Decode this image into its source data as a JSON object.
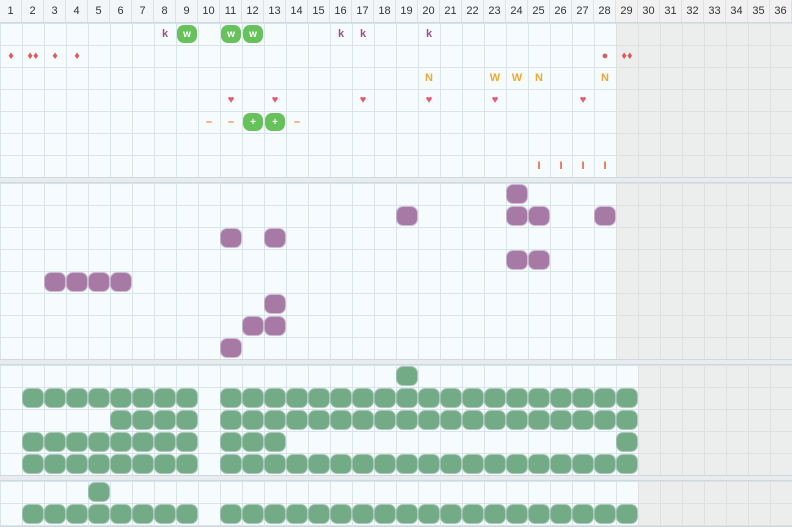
{
  "header": {
    "columns": [
      "1",
      "2",
      "3",
      "4",
      "5",
      "6",
      "7",
      "8",
      "9",
      "10",
      "11",
      "12",
      "13",
      "14",
      "15",
      "16",
      "17",
      "18",
      "19",
      "20",
      "21",
      "22",
      "23",
      "24",
      "25",
      "26",
      "27",
      "28",
      "29",
      "30",
      "31",
      "32",
      "33",
      "34",
      "35",
      "36"
    ]
  },
  "rows": {
    "row1": {
      "k": [
        8,
        16,
        17,
        20
      ],
      "w_pills": [
        9,
        11,
        12
      ],
      "w_label": "w",
      "k_label": "k"
    },
    "row2": {
      "drop": [
        1,
        3,
        4
      ],
      "drop2": [
        2,
        29
      ],
      "dot": [
        28
      ],
      "drop_label": "♦",
      "drop2_label": "♦♦",
      "dot_label": "●"
    },
    "row3": {
      "N": [
        20,
        25,
        28
      ],
      "W": [
        23,
        24
      ],
      "N_label": "N",
      "W_label": "W"
    },
    "row4": {
      "heart": [
        11,
        13,
        17,
        20,
        23,
        27
      ],
      "heart_label": "♥"
    },
    "row5": {
      "minus": [
        10,
        11,
        14
      ],
      "plus": [
        12,
        13
      ],
      "minus_label": "–",
      "plus_label": "+"
    },
    "row6": {
      "bar": [
        25,
        26,
        27,
        28
      ],
      "bar_label": "I"
    }
  },
  "colors": {
    "k": "#9b4f8f",
    "drop": "#e25b5b",
    "N": "#f0a92e",
    "heart": "#e65a73",
    "minus": "#f07f2e",
    "bar": "#e8663a",
    "pill": "#67c25c",
    "purple": "#a77aa5",
    "green": "#72ab86"
  },
  "purple_blocks": [
    {
      "c": 24,
      "r": 1
    },
    {
      "c": 19,
      "r": 2
    },
    {
      "c": 24,
      "r": 2
    },
    {
      "c": 25,
      "r": 2
    },
    {
      "c": 28,
      "r": 2
    },
    {
      "c": 11,
      "r": 3
    },
    {
      "c": 13,
      "r": 3
    },
    {
      "c": 24,
      "r": 4
    },
    {
      "c": 25,
      "r": 4
    },
    {
      "c": 3,
      "r": 5
    },
    {
      "c": 4,
      "r": 5
    },
    {
      "c": 5,
      "r": 5
    },
    {
      "c": 6,
      "r": 5
    },
    {
      "c": 13,
      "r": 6
    },
    {
      "c": 12,
      "r": 7
    },
    {
      "c": 13,
      "r": 7
    },
    {
      "c": 11,
      "r": 8
    }
  ],
  "green_blocks_section3": {
    "row1": [
      19
    ],
    "row2": [
      2,
      3,
      4,
      5,
      6,
      7,
      8,
      9,
      11,
      12,
      13,
      14,
      15,
      16,
      17,
      18,
      19,
      20,
      21,
      22,
      23,
      24,
      25,
      26,
      27,
      28,
      29
    ],
    "row3": [
      6,
      7,
      8,
      9,
      11,
      12,
      13,
      14,
      15,
      16,
      17,
      18,
      19,
      20,
      21,
      22,
      23,
      24,
      25,
      26,
      27,
      28,
      29
    ],
    "row4": [
      2,
      3,
      4,
      5,
      6,
      7,
      8,
      9,
      11,
      12,
      13,
      29
    ],
    "row5": [
      2,
      3,
      4,
      5,
      6,
      7,
      8,
      9,
      11,
      12,
      13,
      14,
      15,
      16,
      17,
      18,
      19,
      20,
      21,
      22,
      23,
      24,
      25,
      26,
      27,
      28,
      29
    ]
  },
  "green_blocks_section4": {
    "row1": [
      5
    ],
    "row2": [
      2,
      3,
      4,
      5,
      6,
      7,
      8,
      9,
      11,
      12,
      13,
      14,
      15,
      16,
      17,
      18,
      19,
      20,
      21,
      22,
      23,
      24,
      25,
      26,
      27,
      28,
      29
    ]
  }
}
